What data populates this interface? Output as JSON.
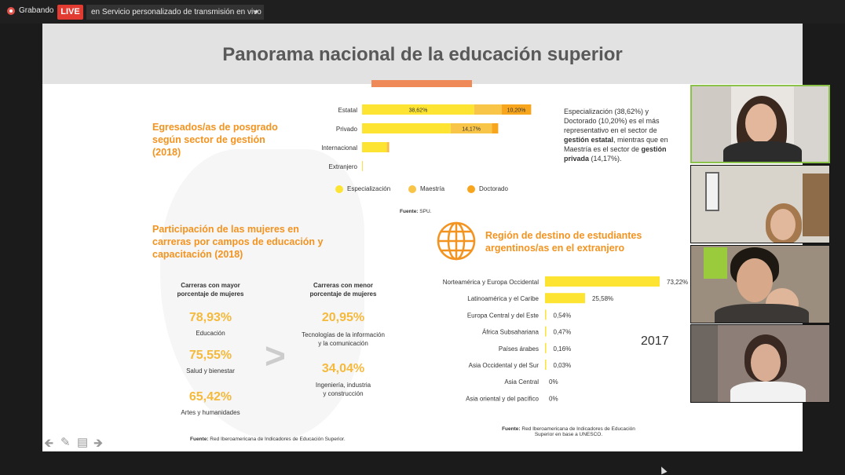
{
  "topbar": {
    "recording_label": "Grabando",
    "live_label": "LIVE",
    "stream_target": "en Servicio personalizado de transmisión en vivo"
  },
  "slide": {
    "title": "Panorama nacional de la educación superior",
    "egresados": {
      "title_line1": "Egresados/as de posgrado",
      "title_line2": "según sector de gestión",
      "title_line3": "(2018)",
      "source_label": "Fuente:",
      "source": "SPU.",
      "description": {
        "p1": "Especialización (38,62%) y Doctorado (10,20%) es el más representativo en el sector de ",
        "b1": "gestión estatal",
        "p2": ", mientras que en Maestría es el sector de ",
        "b2": "gestión privada",
        "p3": " (14,17%)."
      }
    },
    "mujeres": {
      "title_line1": "Participación de las mujeres en",
      "title_line2": "carreras por campos de educación y",
      "title_line3": "capacitación (2018)",
      "col_high_line1": "Carreras con mayor",
      "col_high_line2": "porcentaje de mujeres",
      "col_low_line1": "Carreras con menor",
      "col_low_line2": "porcentaje de mujeres",
      "high": [
        {
          "pct": "78,93%",
          "label": "Educación"
        },
        {
          "pct": "75,55%",
          "label": "Salud y bienestar"
        },
        {
          "pct": "65,42%",
          "label": "Artes y humanidades"
        }
      ],
      "low": [
        {
          "pct": "20,95%",
          "label_line1": "Tecnologías de la información",
          "label_line2": "y la comunicación"
        },
        {
          "pct": "34,04%",
          "label_line1": "Ingeniería, industria",
          "label_line2": "y construcción"
        }
      ],
      "source_label": "Fuente:",
      "source": "Red Iberoamericana de Indicadores de Educación Superior."
    },
    "region": {
      "title_line1": "Región de destino de estudiantes",
      "title_line2": "argentinos/as en el extranjero",
      "year": "2017",
      "source_label": "Fuente:",
      "source_line1": "Red Iberoamericana de Indicadores de Educación",
      "source_line2": "Superior en base a UNESCO."
    }
  },
  "chart_data": [
    {
      "type": "bar",
      "orientation": "horizontal",
      "stacked": true,
      "categories": [
        "Estatal",
        "Privado",
        "Internacional",
        "Extranjero"
      ],
      "series": [
        {
          "name": "Especialización",
          "values": [
            38.62,
            30.5,
            8.5,
            0.2
          ],
          "labels": [
            "38,62%",
            "",
            "",
            ""
          ]
        },
        {
          "name": "Maestría",
          "values": [
            9.4,
            14.17,
            0.5,
            0.1
          ],
          "labels": [
            "",
            "14,17%",
            "",
            ""
          ]
        },
        {
          "name": "Doctorado",
          "values": [
            10.2,
            2.2,
            0.3,
            0.0
          ],
          "labels": [
            "10,20%",
            "",
            "",
            ""
          ]
        }
      ],
      "legend": "bottom",
      "colors": {
        "Especialización": "#fde433",
        "Maestría": "#f9c548",
        "Doctorado": "#f7a51d"
      }
    },
    {
      "type": "bar",
      "orientation": "horizontal",
      "categories": [
        "Norteamérica y Europa Occidental",
        "Latinoamérica y el Caribe",
        "Europa Central y del Este",
        "África Subsahariana",
        "Países árabes",
        "Asia Occidental y del Sur",
        "Asia Central",
        "Asia oriental y del pacífico"
      ],
      "values": [
        73.22,
        25.58,
        0.54,
        0.47,
        0.16,
        0.03,
        0,
        0
      ],
      "labels": [
        "73,22%",
        "25,58%",
        "0,54%",
        "0,47%",
        "0,16%",
        "0,03%",
        "0%",
        "0%"
      ],
      "xlim": [
        0,
        75
      ],
      "colors": {
        "bar": "#fde433"
      }
    }
  ],
  "colors": {
    "accent_orange": "#f39320",
    "pct_yellow": "#f5b93b",
    "live_red": "#e23b32",
    "active_tile": "#8bc34a"
  }
}
